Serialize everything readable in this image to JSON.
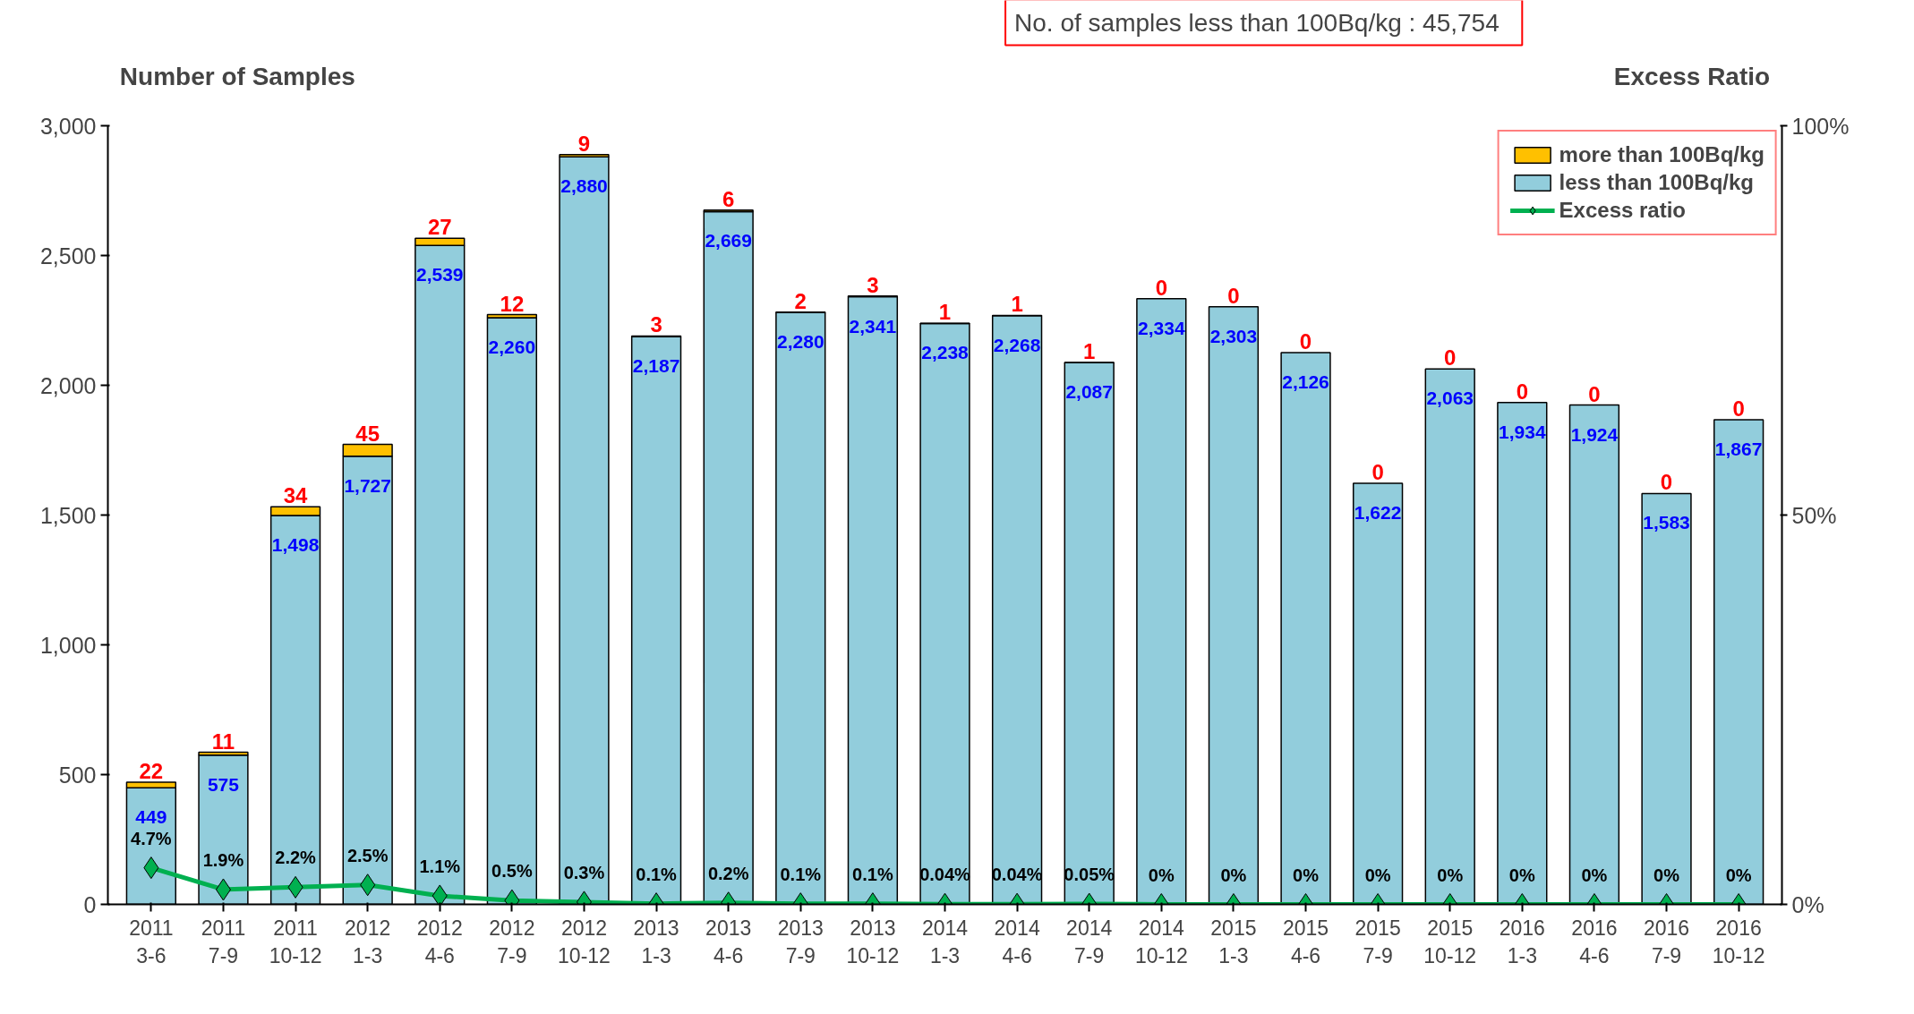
{
  "chart_data": {
    "type": "bar",
    "stacked": true,
    "categories": [
      "2011\n3-6",
      "2011\n7-9",
      "2011\n10-12",
      "2012\n1-3",
      "2012\n4-6",
      "2012\n7-9",
      "2012\n10-12",
      "2013\n1-3",
      "2013\n4-6",
      "2013\n7-9",
      "2013\n10-12",
      "2014\n1-3",
      "2014\n4-6",
      "2014\n7-9",
      "2014\n10-12",
      "2015\n1-3",
      "2015\n4-6",
      "2015\n7-9",
      "2015\n10-12",
      "2016\n1-3",
      "2016\n4-6",
      "2016\n7-9",
      "2016\n10-12"
    ],
    "series": [
      {
        "name": "less than 100Bq/kg",
        "color": "#92cddc",
        "values": [
          449,
          575,
          1498,
          1727,
          2539,
          2260,
          2880,
          2187,
          2669,
          2280,
          2341,
          2238,
          2268,
          2087,
          2334,
          2303,
          2126,
          1622,
          2063,
          1934,
          1924,
          1583,
          1867
        ],
        "value_labels": [
          "449",
          "575",
          "1,498",
          "1,727",
          "2,539",
          "2,260",
          "2,880",
          "2,187",
          "2,669",
          "2,280",
          "2,341",
          "2,238",
          "2,268",
          "2,087",
          "2,334",
          "2,303",
          "2,126",
          "1,622",
          "2,063",
          "1,934",
          "1,924",
          "1,583",
          "1,867"
        ]
      },
      {
        "name": "more than 100Bq/kg",
        "color": "#ffc000",
        "values": [
          22,
          11,
          34,
          45,
          27,
          12,
          9,
          3,
          6,
          2,
          3,
          1,
          1,
          1,
          0,
          0,
          0,
          0,
          0,
          0,
          0,
          0,
          0
        ],
        "value_labels": [
          "22",
          "11",
          "34",
          "45",
          "27",
          "12",
          "9",
          "3",
          "6",
          "2",
          "3",
          "1",
          "1",
          "1",
          "0",
          "0",
          "0",
          "0",
          "0",
          "0",
          "0",
          "0",
          "0"
        ]
      },
      {
        "name": "Excess ratio",
        "type": "line",
        "axis": "y2",
        "color": "#00b050",
        "marker": "diamond",
        "values": [
          4.7,
          1.9,
          2.2,
          2.5,
          1.1,
          0.5,
          0.3,
          0.1,
          0.2,
          0.1,
          0.1,
          0.04,
          0.04,
          0.05,
          0,
          0,
          0,
          0,
          0,
          0,
          0,
          0,
          0
        ],
        "value_labels": [
          "4.7%",
          "1.9%",
          "2.2%",
          "2.5%",
          "1.1%",
          "0.5%",
          "0.3%",
          "0.1%",
          "0.2%",
          "0.1%",
          "0.1%",
          "0.04%",
          "0.04%",
          "0.05%",
          "0%",
          "0%",
          "0%",
          "0%",
          "0%",
          "0%",
          "0%",
          "0%",
          "0%"
        ]
      }
    ],
    "ylabel": "Number of Samples",
    "y2label": "Excess Ratio",
    "ylim": [
      0,
      3000
    ],
    "yticks": [
      {
        "value": 0,
        "label": "0"
      },
      {
        "value": 500,
        "label": "500"
      },
      {
        "value": 1000,
        "label": "1,000"
      },
      {
        "value": 1500,
        "label": "1,500"
      },
      {
        "value": 2000,
        "label": "2,000"
      },
      {
        "value": 2500,
        "label": "2,500"
      },
      {
        "value": 3000,
        "label": "3,000"
      }
    ],
    "y2lim": [
      0,
      100
    ],
    "y2ticks": [
      {
        "value": 0,
        "label": "0%"
      },
      {
        "value": 50,
        "label": "50%"
      },
      {
        "value": 100,
        "label": "100%"
      }
    ],
    "annotations": [
      "No. of samples less than 100Bq/kg  :  45,754"
    ],
    "legend": "top right",
    "grid": false
  }
}
